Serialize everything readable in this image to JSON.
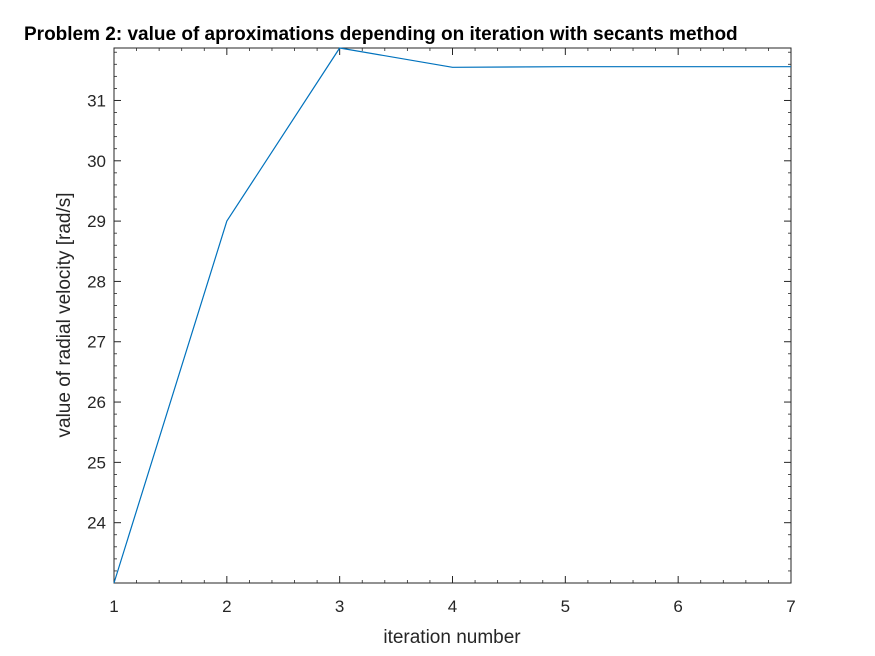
{
  "chart_data": {
    "type": "line",
    "title": "Problem 2: value of aproximations depending on iteration with secants method",
    "xlabel": "iteration number",
    "ylabel": "value of radial velocity [rad/s]",
    "x": [
      1,
      2,
      3,
      4,
      5,
      6,
      7
    ],
    "series": [
      {
        "values": [
          23.0,
          29.0,
          31.87,
          31.55,
          31.56,
          31.56,
          31.56
        ]
      }
    ],
    "xlim": [
      1,
      7
    ],
    "ylim": [
      23.0,
      31.87
    ],
    "xticks": [
      1,
      2,
      3,
      4,
      5,
      6,
      7
    ],
    "yticks": [
      24,
      25,
      26,
      27,
      28,
      29,
      30,
      31
    ],
    "grid": false,
    "box": true,
    "colors": {
      "line": "#0072BD",
      "axes": "#262626"
    }
  }
}
